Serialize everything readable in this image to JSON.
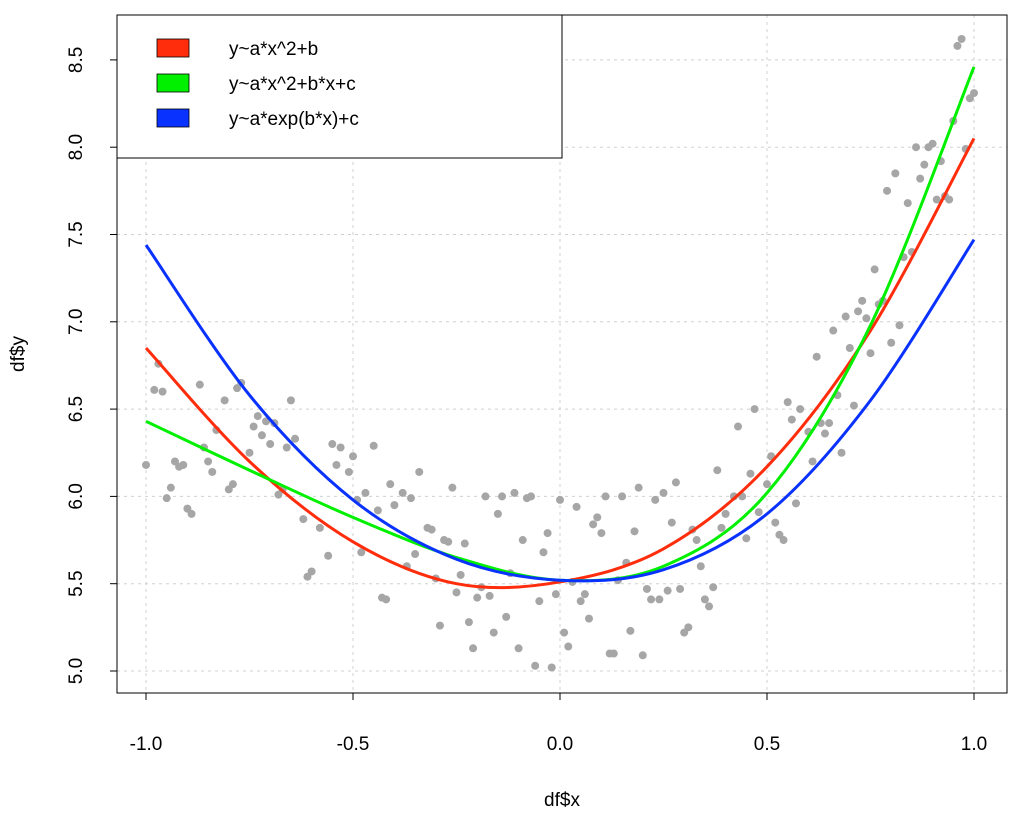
{
  "chart_data": {
    "type": "scatter",
    "title": "",
    "xlabel": "df$x",
    "ylabel": "df$y",
    "xlim": [
      -1.07,
      1.08
    ],
    "ylim": [
      4.88,
      8.77
    ],
    "grid": true,
    "x_ticks": [
      -1.0,
      -0.5,
      0.0,
      0.5,
      1.0
    ],
    "x_tick_labels": [
      "-1.0",
      "-0.5",
      "0.0",
      "0.5",
      "1.0"
    ],
    "y_ticks": [
      5.0,
      5.5,
      6.0,
      6.5,
      7.0,
      7.5,
      8.0,
      8.5
    ],
    "y_tick_labels": [
      "5.0",
      "5.5",
      "6.0",
      "6.5",
      "7.0",
      "7.5",
      "8.0",
      "8.5"
    ],
    "point_color": "#a6a6a6",
    "points": [
      [
        -1.0,
        6.18
      ],
      [
        -0.98,
        6.61
      ],
      [
        -0.97,
        6.76
      ],
      [
        -0.96,
        6.6
      ],
      [
        -0.95,
        5.99
      ],
      [
        -0.94,
        6.05
      ],
      [
        -0.93,
        6.2
      ],
      [
        -0.92,
        6.17
      ],
      [
        -0.91,
        6.18
      ],
      [
        -0.9,
        5.93
      ],
      [
        -0.89,
        5.9
      ],
      [
        -0.87,
        6.64
      ],
      [
        -0.86,
        6.28
      ],
      [
        -0.85,
        6.2
      ],
      [
        -0.84,
        6.14
      ],
      [
        -0.83,
        6.38
      ],
      [
        -0.81,
        6.55
      ],
      [
        -0.8,
        6.04
      ],
      [
        -0.79,
        6.07
      ],
      [
        -0.78,
        6.62
      ],
      [
        -0.77,
        6.65
      ],
      [
        -0.75,
        6.25
      ],
      [
        -0.74,
        6.4
      ],
      [
        -0.73,
        6.46
      ],
      [
        -0.72,
        6.35
      ],
      [
        -0.71,
        6.43
      ],
      [
        -0.7,
        6.3
      ],
      [
        -0.69,
        6.42
      ],
      [
        -0.68,
        6.01
      ],
      [
        -0.67,
        6.04
      ],
      [
        -0.66,
        6.28
      ],
      [
        -0.65,
        6.55
      ],
      [
        -0.64,
        6.33
      ],
      [
        -0.62,
        5.87
      ],
      [
        -0.61,
        5.54
      ],
      [
        -0.6,
        5.57
      ],
      [
        -0.58,
        5.82
      ],
      [
        -0.56,
        5.66
      ],
      [
        -0.55,
        6.3
      ],
      [
        -0.54,
        6.18
      ],
      [
        -0.53,
        6.28
      ],
      [
        -0.51,
        6.14
      ],
      [
        -0.5,
        6.23
      ],
      [
        -0.49,
        5.98
      ],
      [
        -0.48,
        5.68
      ],
      [
        -0.47,
        6.02
      ],
      [
        -0.45,
        6.29
      ],
      [
        -0.44,
        5.92
      ],
      [
        -0.43,
        5.42
      ],
      [
        -0.42,
        5.41
      ],
      [
        -0.41,
        6.07
      ],
      [
        -0.4,
        5.95
      ],
      [
        -0.38,
        6.02
      ],
      [
        -0.37,
        5.6
      ],
      [
        -0.36,
        5.99
      ],
      [
        -0.35,
        5.67
      ],
      [
        -0.34,
        6.14
      ],
      [
        -0.32,
        5.82
      ],
      [
        -0.31,
        5.81
      ],
      [
        -0.3,
        5.53
      ],
      [
        -0.29,
        5.26
      ],
      [
        -0.28,
        5.75
      ],
      [
        -0.27,
        5.74
      ],
      [
        -0.26,
        6.05
      ],
      [
        -0.25,
        5.45
      ],
      [
        -0.24,
        5.55
      ],
      [
        -0.23,
        5.73
      ],
      [
        -0.22,
        5.28
      ],
      [
        -0.21,
        5.13
      ],
      [
        -0.2,
        5.42
      ],
      [
        -0.19,
        5.48
      ],
      [
        -0.18,
        6.0
      ],
      [
        -0.17,
        5.43
      ],
      [
        -0.16,
        5.22
      ],
      [
        -0.15,
        5.9
      ],
      [
        -0.14,
        6.0
      ],
      [
        -0.13,
        5.31
      ],
      [
        -0.12,
        5.56
      ],
      [
        -0.11,
        6.02
      ],
      [
        -0.1,
        5.13
      ],
      [
        -0.09,
        5.75
      ],
      [
        -0.08,
        5.99
      ],
      [
        -0.07,
        6.0
      ],
      [
        -0.06,
        5.03
      ],
      [
        -0.05,
        5.4
      ],
      [
        -0.04,
        5.68
      ],
      [
        -0.03,
        5.79
      ],
      [
        -0.02,
        5.02
      ],
      [
        -0.01,
        5.44
      ],
      [
        0.0,
        5.98
      ],
      [
        0.01,
        5.22
      ],
      [
        0.02,
        5.14
      ],
      [
        0.03,
        5.51
      ],
      [
        0.04,
        5.94
      ],
      [
        0.05,
        5.4
      ],
      [
        0.06,
        5.44
      ],
      [
        0.07,
        5.3
      ],
      [
        0.08,
        5.84
      ],
      [
        0.09,
        5.88
      ],
      [
        0.1,
        5.79
      ],
      [
        0.11,
        6.0
      ],
      [
        0.12,
        5.1
      ],
      [
        0.13,
        5.1
      ],
      [
        0.14,
        5.52
      ],
      [
        0.15,
        6.0
      ],
      [
        0.16,
        5.62
      ],
      [
        0.17,
        5.23
      ],
      [
        0.18,
        5.8
      ],
      [
        0.19,
        6.05
      ],
      [
        0.2,
        5.09
      ],
      [
        0.21,
        5.47
      ],
      [
        0.22,
        5.41
      ],
      [
        0.23,
        5.98
      ],
      [
        0.24,
        5.41
      ],
      [
        0.25,
        6.02
      ],
      [
        0.26,
        5.46
      ],
      [
        0.27,
        5.85
      ],
      [
        0.28,
        6.08
      ],
      [
        0.29,
        5.47
      ],
      [
        0.3,
        5.22
      ],
      [
        0.31,
        5.25
      ],
      [
        0.32,
        5.81
      ],
      [
        0.33,
        5.75
      ],
      [
        0.34,
        5.6
      ],
      [
        0.35,
        5.41
      ],
      [
        0.36,
        5.37
      ],
      [
        0.37,
        5.48
      ],
      [
        0.38,
        6.15
      ],
      [
        0.39,
        5.82
      ],
      [
        0.4,
        5.9
      ],
      [
        0.42,
        6.0
      ],
      [
        0.43,
        6.4
      ],
      [
        0.44,
        6.0
      ],
      [
        0.45,
        5.76
      ],
      [
        0.46,
        6.13
      ],
      [
        0.47,
        6.5
      ],
      [
        0.48,
        5.91
      ],
      [
        0.5,
        6.07
      ],
      [
        0.51,
        6.23
      ],
      [
        0.52,
        5.85
      ],
      [
        0.53,
        5.78
      ],
      [
        0.54,
        5.75
      ],
      [
        0.55,
        6.54
      ],
      [
        0.56,
        6.44
      ],
      [
        0.57,
        5.96
      ],
      [
        0.58,
        6.5
      ],
      [
        0.6,
        6.37
      ],
      [
        0.61,
        6.2
      ],
      [
        0.62,
        6.8
      ],
      [
        0.63,
        6.42
      ],
      [
        0.64,
        6.36
      ],
      [
        0.65,
        6.42
      ],
      [
        0.66,
        6.95
      ],
      [
        0.67,
        6.58
      ],
      [
        0.68,
        6.25
      ],
      [
        0.69,
        7.03
      ],
      [
        0.7,
        6.85
      ],
      [
        0.71,
        6.52
      ],
      [
        0.72,
        7.06
      ],
      [
        0.73,
        7.12
      ],
      [
        0.74,
        7.02
      ],
      [
        0.75,
        6.82
      ],
      [
        0.76,
        7.3
      ],
      [
        0.77,
        7.1
      ],
      [
        0.78,
        7.12
      ],
      [
        0.79,
        7.75
      ],
      [
        0.8,
        6.88
      ],
      [
        0.81,
        7.85
      ],
      [
        0.82,
        6.98
      ],
      [
        0.83,
        7.37
      ],
      [
        0.84,
        7.68
      ],
      [
        0.85,
        7.4
      ],
      [
        0.86,
        8.0
      ],
      [
        0.87,
        7.82
      ],
      [
        0.88,
        7.9
      ],
      [
        0.89,
        8.0
      ],
      [
        0.9,
        8.02
      ],
      [
        0.91,
        7.7
      ],
      [
        0.92,
        7.92
      ],
      [
        0.93,
        7.72
      ],
      [
        0.94,
        7.7
      ],
      [
        0.95,
        8.15
      ],
      [
        0.96,
        8.58
      ],
      [
        0.97,
        8.62
      ],
      [
        0.98,
        7.99
      ],
      [
        0.99,
        8.28
      ],
      [
        1.0,
        8.31
      ]
    ],
    "series": [
      {
        "name": "y~a*x^2+b",
        "color": "#ff2d0c",
        "x": [
          -1,
          -0.75,
          -0.5,
          -0.25,
          0,
          0.25,
          0.5,
          0.75,
          1
        ],
        "y": [
          6.85,
          6.2,
          5.74,
          5.5,
          5.51,
          5.7,
          6.17,
          6.95,
          8.05
        ]
      },
      {
        "name": "y~a*x^2+b*x+c",
        "color": "#00f000",
        "x": [
          -1,
          -0.75,
          -0.5,
          -0.25,
          0,
          0.25,
          0.5,
          0.75,
          1
        ],
        "y": [
          6.43,
          6.15,
          5.88,
          5.65,
          5.52,
          5.6,
          6.02,
          6.98,
          8.46
        ]
      },
      {
        "name": "y~a*exp(b*x)+c",
        "color": "#0a32ff",
        "x": [
          -1,
          -0.75,
          -0.5,
          -0.25,
          0,
          0.25,
          0.5,
          0.75,
          1
        ],
        "y": [
          7.44,
          6.58,
          5.98,
          5.64,
          5.52,
          5.58,
          5.9,
          6.55,
          7.47
        ]
      }
    ],
    "legend_placement": "top-left"
  }
}
